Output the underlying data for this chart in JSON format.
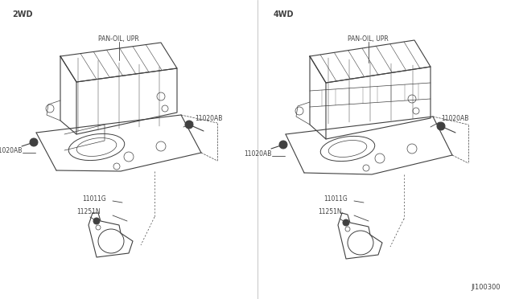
{
  "background_color": "#f5f5f0",
  "fig_width": 6.4,
  "fig_height": 3.72,
  "dpi": 100,
  "left_label": "2WD",
  "right_label": "4WD",
  "diagram_id": "JI100300",
  "lc": "#404040",
  "lw_main": 0.8,
  "lw_thin": 0.5,
  "font_size_header": 7,
  "font_size_part": 5.5,
  "font_size_id": 6
}
